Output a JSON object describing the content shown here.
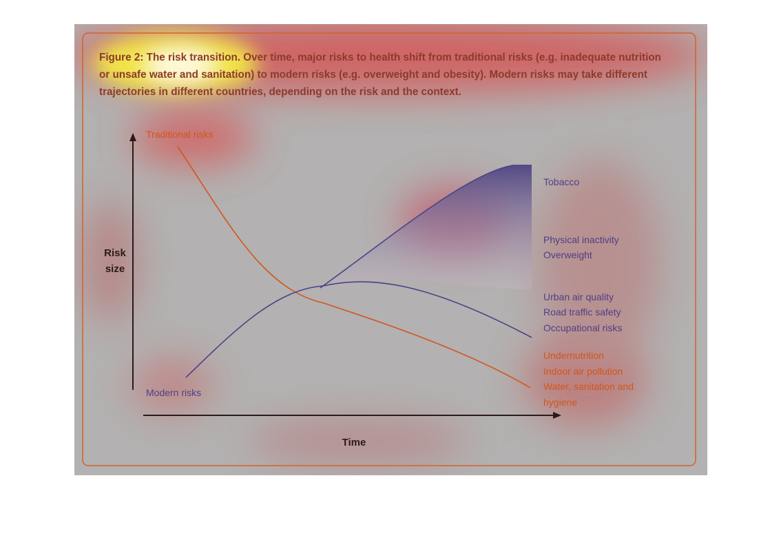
{
  "figure": {
    "caption_lines": [
      "Figure 2: The risk transition. Over time, major risks to health shift from traditional risks (e.g. inadequate nutrition",
      "or unsafe water and sanitation) to modern risks (e.g. overweight and obesity). Modern risks may take different",
      "trajectories in different countries, depending on the risk and the context."
    ]
  },
  "axes": {
    "y_label_lines": [
      "Risk",
      "size"
    ],
    "x_label": "Time"
  },
  "curves": {
    "traditional": "Traditional risks",
    "modern": "Modern risks"
  },
  "risk_groups": [
    {
      "items": [
        "Tobacco"
      ]
    },
    {
      "items": [
        "Physical inactivity",
        "Overweight"
      ]
    },
    {
      "items": [
        "Urban air quality",
        "Road traffic safety",
        "Occupational risks"
      ]
    },
    {
      "items": [
        "Undernutrition",
        "Indoor air pollution",
        "Water, sanitation and",
        "hygiene"
      ]
    }
  ]
}
